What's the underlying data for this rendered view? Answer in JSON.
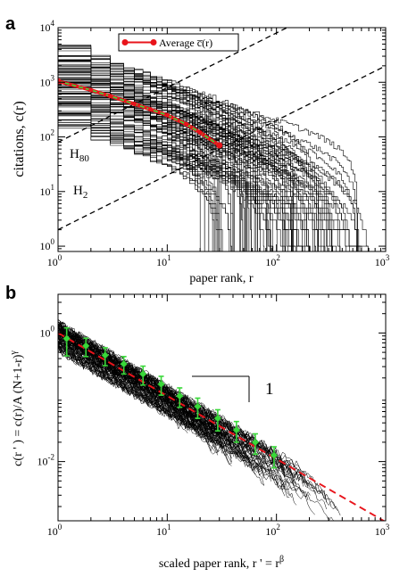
{
  "chart_data": [
    {
      "type": "line",
      "panel_label": "a",
      "xlabel": "paper rank, r",
      "ylabel": "citations, c(r)",
      "xscale": "log",
      "yscale": "log",
      "xlim": [
        1,
        1000
      ],
      "ylim": [
        0.8,
        10000
      ],
      "x_ticks": [
        {
          "value": 1,
          "base": "10",
          "exp": "0"
        },
        {
          "value": 10,
          "base": "10",
          "exp": "1"
        },
        {
          "value": 100,
          "base": "10",
          "exp": "2"
        },
        {
          "value": 1000,
          "base": "10",
          "exp": "3"
        }
      ],
      "y_ticks": [
        {
          "value": 1,
          "base": "10",
          "exp": "0"
        },
        {
          "value": 10,
          "base": "10",
          "exp": "1"
        },
        {
          "value": 100,
          "base": "10",
          "exp": "2"
        },
        {
          "value": 1000,
          "base": "10",
          "exp": "3"
        },
        {
          "value": 10000,
          "base": "10",
          "exp": "4"
        }
      ],
      "legend": {
        "label": "Average c̅(r)",
        "position": "top-left"
      },
      "annotations": [
        {
          "base": "H",
          "sub": "80"
        },
        {
          "base": "H",
          "sub": "2"
        }
      ],
      "reference_lines": [
        {
          "name": "H80",
          "slope": 80,
          "x": [
            1,
            1000
          ],
          "y": [
            80,
            80000
          ]
        },
        {
          "name": "H2",
          "slope": 2,
          "x": [
            1,
            1000
          ],
          "y": [
            2,
            2000
          ]
        }
      ],
      "average_series": {
        "x": [
          1,
          2,
          3,
          5,
          7,
          10,
          15,
          20,
          30
        ],
        "y": [
          1050,
          720,
          560,
          400,
          320,
          250,
          170,
          120,
          70
        ]
      },
      "individual_curves": {
        "count": 100,
        "c1_range": [
          140,
          5000
        ],
        "rank_max_range": [
          20,
          700
        ]
      },
      "colors": {
        "average": "#e8141b",
        "fit": "#3ad83a",
        "curves": "#000000"
      }
    },
    {
      "type": "line",
      "panel_label": "b",
      "xlabel_parts": {
        "main": "scaled paper rank, r ' = r",
        "sup": "β"
      },
      "ylabel_parts": {
        "main": "c(r ' ) = c(r)/A (N+1-r)",
        "sup": "γ"
      },
      "xscale": "log",
      "yscale": "log",
      "xlim": [
        1,
        1000
      ],
      "ylim": [
        0.0012,
        4
      ],
      "x_ticks": [
        {
          "value": 1,
          "base": "10",
          "exp": "0"
        },
        {
          "value": 10,
          "base": "10",
          "exp": "1"
        },
        {
          "value": 100,
          "base": "10",
          "exp": "2"
        },
        {
          "value": 1000,
          "base": "10",
          "exp": "3"
        }
      ],
      "y_ticks": [
        {
          "value": 0.01,
          "base": "10",
          "exp": "-2"
        },
        {
          "value": 1,
          "base": "10",
          "exp": "0"
        }
      ],
      "slope_annotation": "1",
      "fit_line": {
        "x": [
          1,
          1000
        ],
        "y": [
          1.0,
          0.00115
        ]
      },
      "binned_averages": {
        "x": [
          1.2,
          1.8,
          2.7,
          4.0,
          6.0,
          8.8,
          13,
          19,
          29,
          43,
          64,
          95
        ],
        "y": [
          0.82,
          0.63,
          0.45,
          0.33,
          0.23,
          0.16,
          0.105,
          0.072,
          0.047,
          0.031,
          0.02,
          0.0125
        ],
        "err": [
          0.38,
          0.2,
          0.14,
          0.1,
          0.075,
          0.052,
          0.035,
          0.025,
          0.017,
          0.011,
          0.007,
          0.0045
        ]
      },
      "collapsed_curves": {
        "count": 100
      },
      "colors": {
        "fit": "#e8141b",
        "points": "#3ad83a",
        "curves": "#000000"
      }
    }
  ]
}
